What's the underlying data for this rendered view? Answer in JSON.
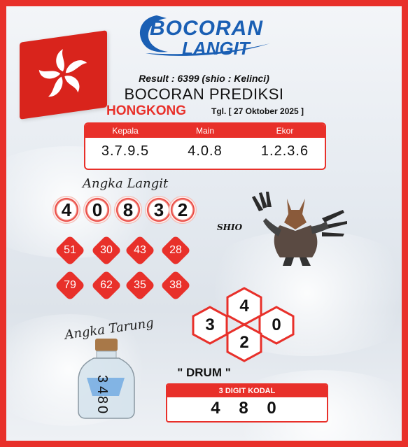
{
  "brand": {
    "line1": "BOCORAN",
    "line2": "LANGIT"
  },
  "result": "Result : 6399 (shio : Kelinci)",
  "title": "BOCORAN PREDIKSI",
  "market": "HONGKONG",
  "date": "Tgl. [ 27 Oktober 2025 ]",
  "table": {
    "headers": [
      "Kepala",
      "Main",
      "Ekor"
    ],
    "values": [
      "3.7.9.5",
      "4.0.8",
      "1.2.3.6"
    ]
  },
  "angka_langit": {
    "label": "Angka Langit",
    "digits": [
      "4",
      "0",
      "8",
      "3",
      "2"
    ],
    "pairs": [
      "51",
      "30",
      "43",
      "28",
      "79",
      "62",
      "35",
      "38"
    ]
  },
  "shio": {
    "label": "SHIO",
    "icon": "wolf-warrior-image"
  },
  "hexagons": {
    "top": "4",
    "left": "3",
    "right": "0",
    "bottom": "2"
  },
  "angka_tarung": {
    "label": "Angka Tarung",
    "bottle_digits": [
      "3",
      "4",
      "8",
      "0"
    ]
  },
  "drum": "\" DRUM \"",
  "kodal": {
    "label": "3 DIGIT KODAL",
    "value": "4 8 0"
  },
  "colors": {
    "accent": "#e8302a",
    "brand": "#1a5fb4"
  }
}
